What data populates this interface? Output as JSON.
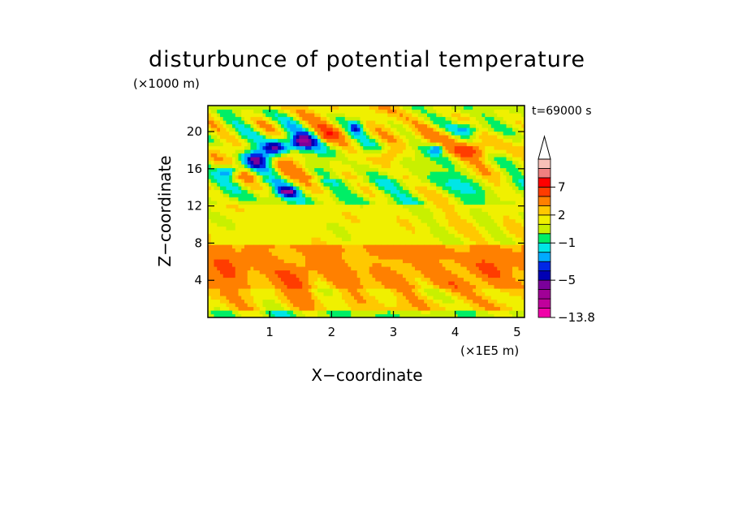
{
  "chart_data": {
    "type": "heatmap",
    "title": "disturbunce of potential temperature",
    "xlabel": "X−coordinate",
    "ylabel": "Z−coordinate",
    "x_unit": "(×1E5 m)",
    "y_unit": "(×1000 m)",
    "time_label": "t=69000 s",
    "xlim": [
      0,
      5.12
    ],
    "ylim": [
      0,
      22.8
    ],
    "x_ticks": [
      1,
      2,
      3,
      4,
      5
    ],
    "y_ticks": [
      4,
      8,
      12,
      16,
      20
    ],
    "colorbar": {
      "levels": [
        -13.8,
        -10,
        -8,
        -6,
        -5,
        -4,
        -3,
        -2,
        -1,
        0,
        1,
        2,
        3,
        5,
        7,
        9,
        11
      ],
      "colors": [
        "#f000a8",
        "#c0009c",
        "#a00096",
        "#7a009a",
        "#0000b4",
        "#0028e6",
        "#00aaff",
        "#00e6e6",
        "#00ee66",
        "#c8f000",
        "#f0f000",
        "#ffc800",
        "#ff8000",
        "#ff3c00",
        "#ff0000",
        "#f08080",
        "#f8c0b8"
      ],
      "tick_labels": [
        {
          "label": "7",
          "value": 7
        },
        {
          "label": "2",
          "value": 2
        },
        {
          "label": "−1",
          "value": -1
        },
        {
          "label": "−5",
          "value": -5
        },
        {
          "label": "−13.8",
          "value": -13.8
        }
      ],
      "extend": "max"
    },
    "grid": false
  }
}
